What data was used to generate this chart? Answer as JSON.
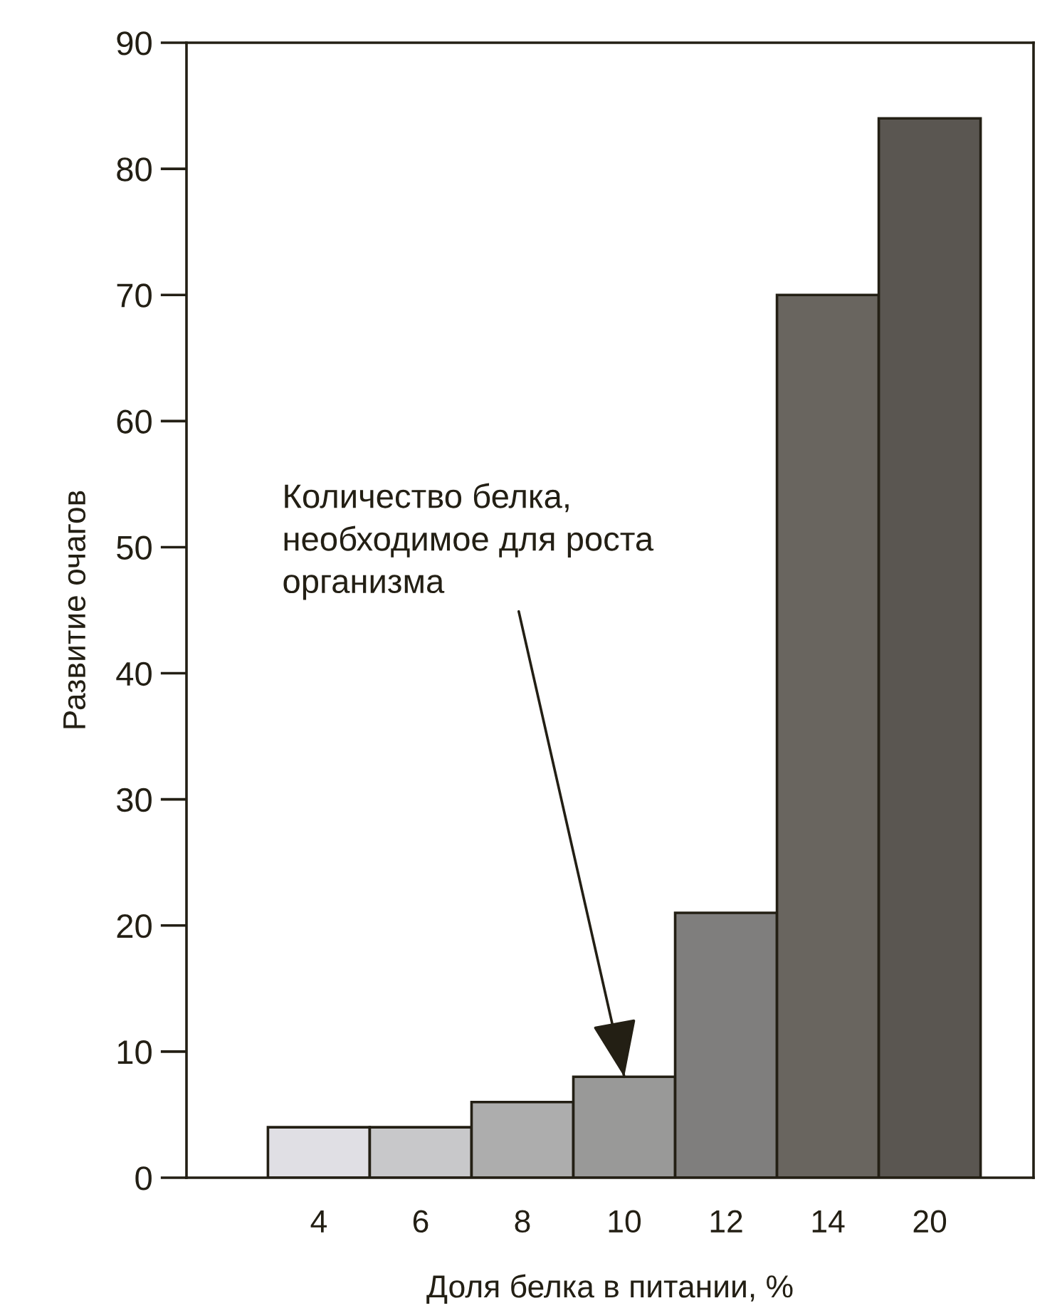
{
  "chart_data": {
    "type": "bar",
    "xlabel": "Доля белка в питании, %",
    "ylabel": "Развитие очагов",
    "categories": [
      "4",
      "6",
      "8",
      "10",
      "12",
      "14",
      "20"
    ],
    "values": [
      4,
      4,
      6,
      8,
      21,
      70,
      84
    ],
    "colors": [
      "#e0dfe4",
      "#c8c8ca",
      "#adadad",
      "#999998",
      "#7f7e7d",
      "#69655f",
      "#5a5651"
    ],
    "ylim": [
      0,
      90
    ],
    "yticks": [
      0,
      10,
      20,
      30,
      40,
      50,
      60,
      70,
      80,
      90
    ],
    "annotations": [
      {
        "text": "Количество белка,\nнеобходимое для роста\nорганизма",
        "x": "10",
        "y": 8
      }
    ]
  }
}
